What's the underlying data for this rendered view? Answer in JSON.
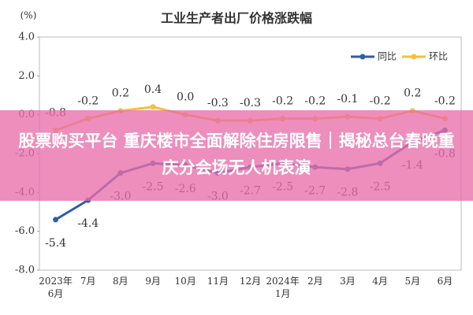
{
  "chart_data": {
    "type": "line",
    "title": "工业生产者出厂价格涨跌幅",
    "y_label": "(%)",
    "categories": [
      "2023年\n6月",
      "7月",
      "8月",
      "9月",
      "10月",
      "11月",
      "12月",
      "2024年\n1月",
      "2月",
      "3月",
      "4月",
      "5月",
      "6月"
    ],
    "series": [
      {
        "name": "同比",
        "color": "#2f5da8",
        "values": [
          -5.4,
          -4.4,
          -3.0,
          -2.5,
          -2.6,
          -3.0,
          -2.7,
          -2.5,
          -2.7,
          -2.8,
          -2.5,
          -1.4,
          -0.8
        ],
        "value_labels": [
          "-5.4",
          "-4.4",
          "-3.0",
          "-2.5",
          "-2.6",
          "-3.0",
          "-2.7",
          "-2.5",
          "-2.7",
          "-2.8",
          "-2.5",
          "-1.4",
          "-0.8"
        ]
      },
      {
        "name": "环比",
        "color": "#f4c03e",
        "values": [
          -0.8,
          -0.2,
          0.2,
          0.4,
          0.0,
          -0.3,
          -0.3,
          -0.2,
          -0.2,
          -0.1,
          -0.2,
          0.2,
          -0.2
        ],
        "value_labels": [
          "-0.8",
          "-0.2",
          "0.2",
          "0.4",
          "0.0",
          "-0.3",
          "-0.3",
          "-0.2",
          "-0.2",
          "-0.1",
          "-0.2",
          "0.2",
          "-0.2"
        ]
      }
    ],
    "ylim": [
      -8,
      4
    ],
    "yticks": [
      {
        "value": -8,
        "label": "-8.0"
      },
      {
        "value": -6,
        "label": "-6.0"
      },
      {
        "value": -4,
        "label": "-4.0"
      },
      {
        "value": -2,
        "label": "-2.0"
      },
      {
        "value": 0,
        "label": "0.0"
      },
      {
        "value": 2,
        "label": "2.0"
      },
      {
        "value": 4,
        "label": "4.0"
      }
    ],
    "grid": false,
    "legend": "top-right"
  },
  "banner": {
    "text": "股票购买平台 重庆楼市全面解除住房限售｜揭秘总台春晚重庆分会场无人机表演"
  }
}
